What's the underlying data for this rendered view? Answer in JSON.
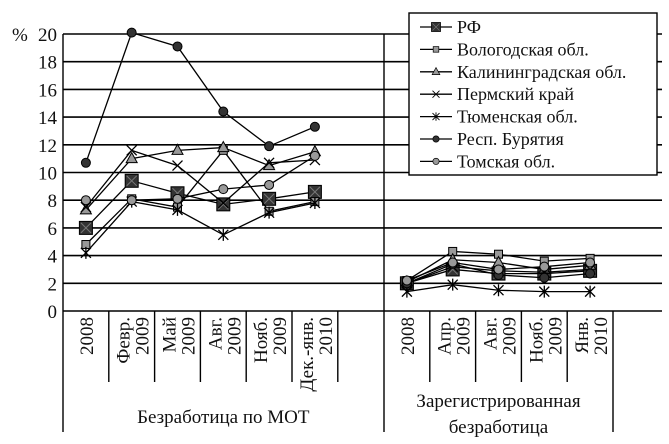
{
  "chart_data": {
    "type": "line",
    "ylabel": "%",
    "ylim": [
      0,
      20
    ],
    "yticks": [
      "0",
      "2",
      "4",
      "6",
      "8",
      "10",
      "12",
      "14",
      "16",
      "18",
      "20"
    ],
    "grid": true,
    "legend_position": "top-right",
    "groups": [
      {
        "label": "Безработица по МОТ",
        "categories": [
          [
            "2008"
          ],
          [
            "Февр.",
            "2009"
          ],
          [
            "Май",
            "2009"
          ],
          [
            "Авг.",
            "2009"
          ],
          [
            "Нояб.",
            "2009"
          ],
          [
            "Дек.-янв.",
            "2010"
          ]
        ]
      },
      {
        "label": [
          "Зарегистрированная",
          "безработица"
        ],
        "categories": [
          [
            "2008"
          ],
          [
            "Апр.",
            "2009"
          ],
          [
            "Авг.",
            "2009"
          ],
          [
            "Нояб.",
            "2009"
          ],
          [
            "Янв.",
            "2010"
          ]
        ]
      }
    ],
    "series": [
      {
        "name": "РФ",
        "marker": "square-x",
        "values": [
          [
            6.0,
            9.4,
            8.5,
            7.7,
            8.1,
            8.6
          ],
          [
            2.0,
            3.0,
            2.7,
            2.7,
            2.9
          ]
        ]
      },
      {
        "name": "Вологодская обл.",
        "marker": "small-square",
        "values": [
          [
            4.8,
            8.1,
            7.5,
            11.6,
            7.2,
            7.9
          ],
          [
            2.2,
            4.3,
            4.1,
            3.6,
            3.8
          ]
        ]
      },
      {
        "name": "Калининградская обл.",
        "marker": "triangle",
        "values": [
          [
            7.3,
            11.0,
            11.6,
            11.8,
            10.5,
            11.5
          ],
          [
            2.1,
            3.7,
            3.5,
            3.0,
            3.3
          ]
        ]
      },
      {
        "name": "Пермский край",
        "marker": "x",
        "values": [
          [
            7.5,
            11.6,
            10.5,
            7.8,
            10.7,
            10.9
          ],
          [
            2.0,
            3.2,
            2.9,
            2.8,
            3.0
          ]
        ]
      },
      {
        "name": "Тюменская обл.",
        "marker": "asterisk",
        "values": [
          [
            4.2,
            7.9,
            7.3,
            5.5,
            7.1,
            7.8
          ],
          [
            1.4,
            1.9,
            1.5,
            1.4,
            1.4
          ]
        ]
      },
      {
        "name": "Респ. Бурятия",
        "marker": "dark-circle",
        "values": [
          [
            10.7,
            20.1,
            19.1,
            14.4,
            11.9,
            13.3
          ],
          [
            2.0,
            3.4,
            2.6,
            2.4,
            2.7
          ]
        ]
      },
      {
        "name": "Томская обл.",
        "marker": "gray-circle",
        "values": [
          [
            8.0,
            8.0,
            8.1,
            8.8,
            9.1,
            11.2
          ],
          [
            2.2,
            3.5,
            3.0,
            3.2,
            3.5
          ]
        ]
      }
    ],
    "colors": {
      "dark": "#333333",
      "gray": "#999999",
      "line": "#000000"
    }
  }
}
